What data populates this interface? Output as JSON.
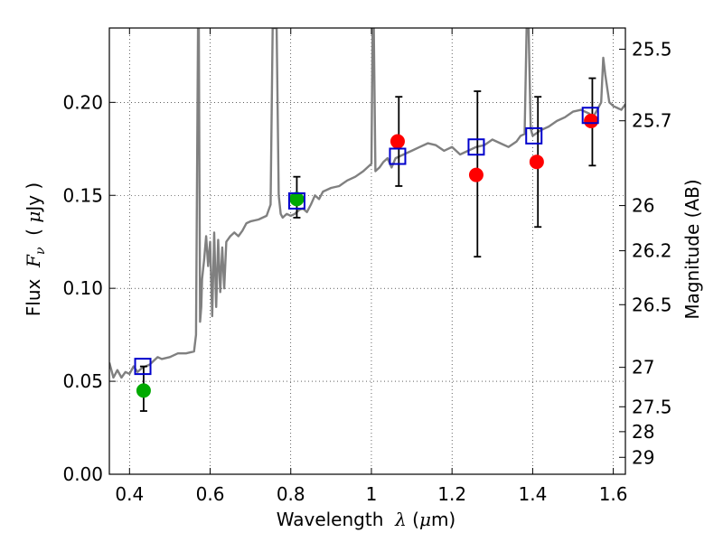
{
  "chart_data": {
    "type": "scatter",
    "xlabel": "Wavelength  λ (μm)",
    "ylabel": "Flux  F_ν  ( μJy )",
    "ylabel_right": "Magnitude (AB)",
    "xlim": [
      0.35,
      1.63
    ],
    "ylim": [
      0.0,
      0.24
    ],
    "grid": true,
    "x_ticks": [
      0.4,
      0.6,
      0.8,
      1.0,
      1.2,
      1.4,
      1.6
    ],
    "x_tick_labels": [
      "0.4",
      "0.6",
      "0.8",
      "1",
      "1.2",
      "1.4",
      "1.6"
    ],
    "y_ticks": [
      0.0,
      0.05,
      0.1,
      0.15,
      0.2
    ],
    "y_tick_labels": [
      "0.00",
      "0.05",
      "0.10",
      "0.15",
      "0.20"
    ],
    "right_ticks": [
      {
        "label": "25.5",
        "flux": 0.2286
      },
      {
        "label": "25.7",
        "flux": 0.1901
      },
      {
        "label": "26",
        "flux": 0.1445
      },
      {
        "label": "26.2",
        "flux": 0.1202
      },
      {
        "label": "26.5",
        "flux": 0.0912
      },
      {
        "label": "27",
        "flux": 0.0575
      },
      {
        "label": "27.5",
        "flux": 0.0363
      },
      {
        "label": "28",
        "flux": 0.0229
      },
      {
        "label": "29",
        "flux": 0.0091
      }
    ],
    "model_spectrum": {
      "name": "SED model",
      "color": "#808080",
      "x": [
        0.35,
        0.36,
        0.37,
        0.38,
        0.39,
        0.4,
        0.41,
        0.42,
        0.43,
        0.44,
        0.45,
        0.46,
        0.47,
        0.48,
        0.5,
        0.52,
        0.54,
        0.56,
        0.565,
        0.57,
        0.572,
        0.575,
        0.578,
        0.58,
        0.585,
        0.59,
        0.595,
        0.6,
        0.605,
        0.61,
        0.615,
        0.62,
        0.625,
        0.63,
        0.635,
        0.64,
        0.65,
        0.66,
        0.67,
        0.68,
        0.69,
        0.7,
        0.72,
        0.74,
        0.75,
        0.755,
        0.76,
        0.765,
        0.77,
        0.775,
        0.78,
        0.79,
        0.8,
        0.81,
        0.82,
        0.83,
        0.84,
        0.85,
        0.86,
        0.87,
        0.88,
        0.9,
        0.92,
        0.94,
        0.96,
        0.98,
        1.0,
        1.003,
        1.006,
        1.01,
        1.02,
        1.03,
        1.04,
        1.05,
        1.06,
        1.08,
        1.1,
        1.12,
        1.14,
        1.16,
        1.18,
        1.2,
        1.22,
        1.24,
        1.26,
        1.28,
        1.3,
        1.32,
        1.34,
        1.36,
        1.37,
        1.38,
        1.385,
        1.39,
        1.395,
        1.4,
        1.42,
        1.44,
        1.46,
        1.48,
        1.5,
        1.52,
        1.54,
        1.55,
        1.56,
        1.57,
        1.575,
        1.58,
        1.59,
        1.6,
        1.61,
        1.62,
        1.63
      ],
      "y": [
        0.06,
        0.052,
        0.056,
        0.052,
        0.055,
        0.054,
        0.058,
        0.055,
        0.057,
        0.058,
        0.059,
        0.061,
        0.063,
        0.062,
        0.063,
        0.065,
        0.065,
        0.066,
        0.075,
        0.24,
        0.24,
        0.082,
        0.09,
        0.105,
        0.115,
        0.128,
        0.112,
        0.125,
        0.085,
        0.13,
        0.09,
        0.126,
        0.098,
        0.122,
        0.1,
        0.125,
        0.128,
        0.13,
        0.128,
        0.131,
        0.135,
        0.136,
        0.137,
        0.139,
        0.145,
        0.24,
        0.24,
        0.24,
        0.15,
        0.14,
        0.138,
        0.14,
        0.139,
        0.14,
        0.142,
        0.143,
        0.141,
        0.145,
        0.15,
        0.148,
        0.152,
        0.154,
        0.155,
        0.158,
        0.16,
        0.163,
        0.167,
        0.24,
        0.24,
        0.163,
        0.165,
        0.168,
        0.17,
        0.165,
        0.17,
        0.172,
        0.174,
        0.176,
        0.178,
        0.177,
        0.174,
        0.176,
        0.172,
        0.174,
        0.176,
        0.177,
        0.18,
        0.178,
        0.176,
        0.179,
        0.182,
        0.183,
        0.24,
        0.24,
        0.186,
        0.182,
        0.185,
        0.187,
        0.19,
        0.192,
        0.195,
        0.196,
        0.194,
        0.192,
        0.196,
        0.2,
        0.224,
        0.215,
        0.2,
        0.198,
        0.197,
        0.196,
        0.199
      ]
    },
    "series": [
      {
        "name": "Green observed points",
        "color": "#00aa00",
        "marker": "circle",
        "points": [
          {
            "x": 0.435,
            "y": 0.045
          },
          {
            "x": 0.815,
            "y": 0.148
          }
        ]
      },
      {
        "name": "Red observed points",
        "color": "#ff0000",
        "marker": "circle",
        "points": [
          {
            "x": 1.065,
            "y": 0.179
          },
          {
            "x": 1.26,
            "y": 0.161
          },
          {
            "x": 1.41,
            "y": 0.168
          },
          {
            "x": 1.545,
            "y": 0.19
          }
        ]
      },
      {
        "name": "Blue model photometry",
        "color": "#0000cc",
        "marker": "square",
        "points": [
          {
            "x": 0.433,
            "y": 0.058
          },
          {
            "x": 0.815,
            "y": 0.147
          },
          {
            "x": 1.065,
            "y": 0.171
          },
          {
            "x": 1.26,
            "y": 0.176
          },
          {
            "x": 1.403,
            "y": 0.182
          },
          {
            "x": 1.543,
            "y": 0.193
          }
        ]
      }
    ],
    "error_bars": [
      {
        "x": 0.435,
        "low": 0.034,
        "high": 0.058
      },
      {
        "x": 0.815,
        "low": 0.138,
        "high": 0.16
      },
      {
        "x": 1.068,
        "low": 0.155,
        "high": 0.203
      },
      {
        "x": 1.263,
        "low": 0.117,
        "high": 0.206
      },
      {
        "x": 1.413,
        "low": 0.133,
        "high": 0.203
      },
      {
        "x": 1.548,
        "low": 0.166,
        "high": 0.213
      }
    ]
  }
}
